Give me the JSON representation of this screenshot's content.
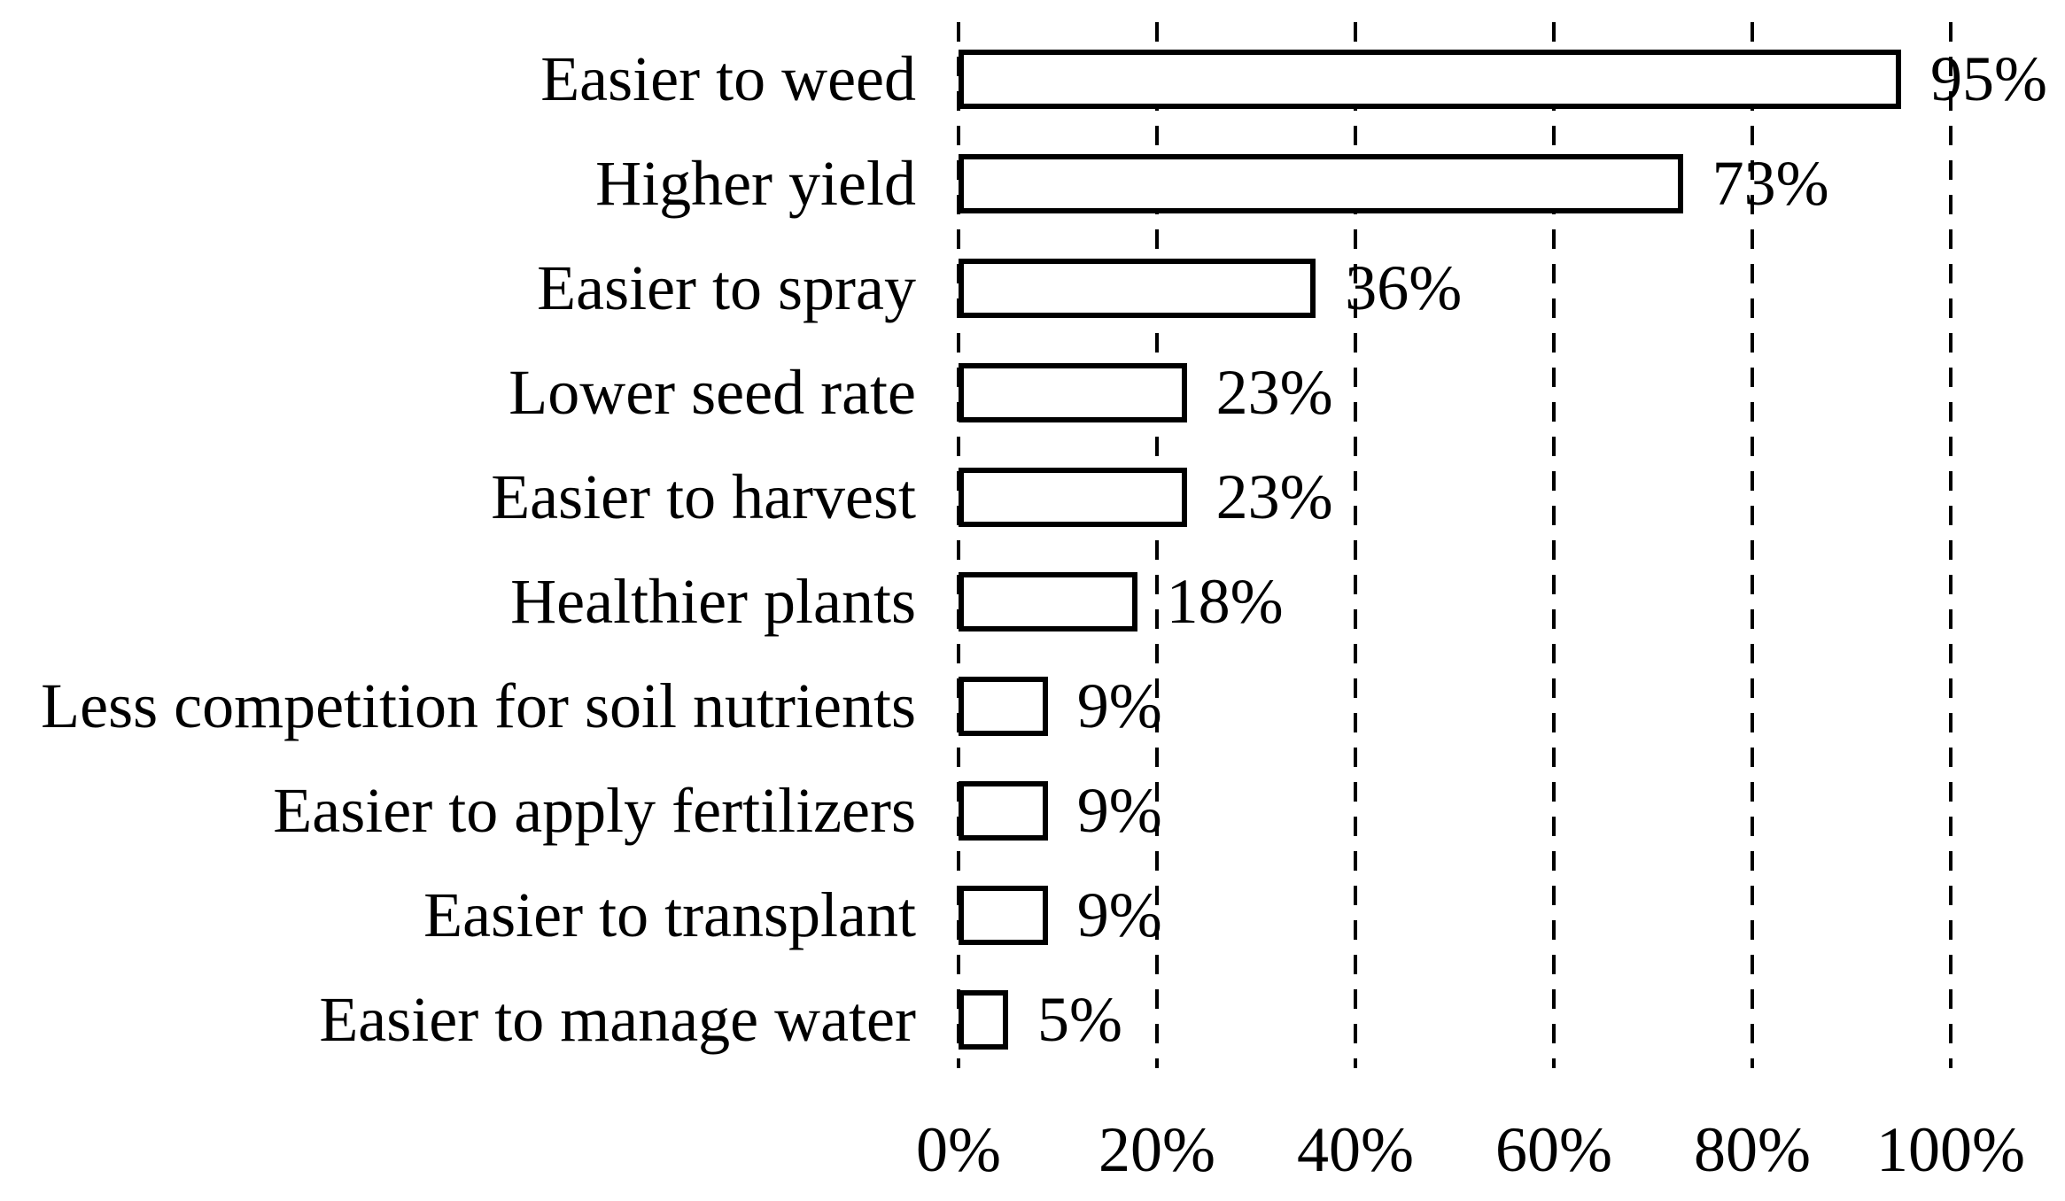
{
  "colors": {
    "background": "#ffffff",
    "bar_fill": "#ffffff",
    "bar_border": "#000000",
    "text": "#000000",
    "gridline": "#000000"
  },
  "chart_data": {
    "type": "bar",
    "orientation": "horizontal",
    "title": "",
    "xlabel": "",
    "ylabel": "",
    "categories": [
      "Easier to weed",
      "Higher yield",
      "Easier to spray",
      "Lower seed rate",
      "Easier to harvest",
      "Healthier plants",
      "Less competition for soil nutrients",
      "Easier to apply fertilizers",
      "Easier to transplant",
      "Easier to manage water"
    ],
    "values": [
      95,
      73,
      36,
      23,
      23,
      18,
      9,
      9,
      9,
      5
    ],
    "value_labels": [
      "95%",
      "73%",
      "36%",
      "23%",
      "23%",
      "18%",
      "9%",
      "9%",
      "9%",
      "5%"
    ],
    "x_ticks": [
      0,
      20,
      40,
      60,
      80,
      100
    ],
    "x_tick_labels": [
      "0%",
      "20%",
      "40%",
      "60%",
      "80%",
      "100%"
    ],
    "xlim": [
      0,
      100
    ],
    "grid": "vertical-dashed",
    "legend": "none"
  }
}
